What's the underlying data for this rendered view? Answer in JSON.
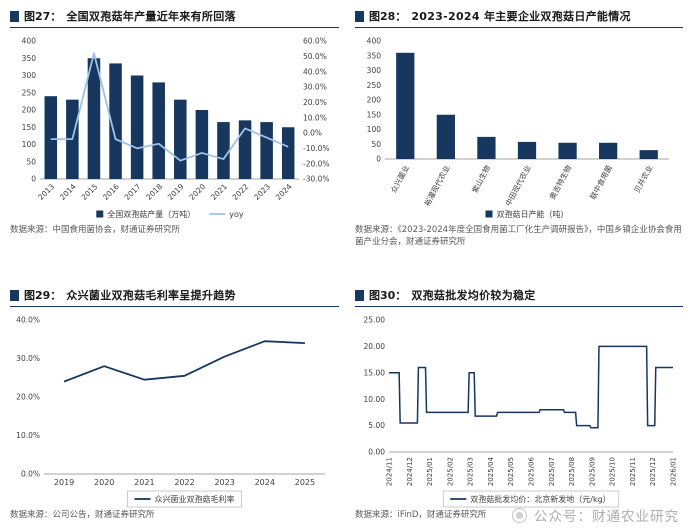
{
  "colors": {
    "navy": "#17375E",
    "light_blue": "#9DC3E6",
    "axis_text": "#404040",
    "source_text": "#595959"
  },
  "watermark": {
    "label": "公众号：财通农业研究",
    "icon": "caitong-logo"
  },
  "chart_data": [
    {
      "id": "fig27",
      "type": "combo",
      "tag": "图27：",
      "title": "全国双孢菇年产量近年来有所回落",
      "categories": [
        "2013",
        "2014",
        "2015",
        "2016",
        "2017",
        "2018",
        "2019",
        "2020",
        "2021",
        "2022",
        "2023",
        "2024"
      ],
      "series": [
        {
          "name": "全国双孢菇产量（万吨）",
          "type": "bar",
          "axis": "left",
          "color": "#17375E",
          "values": [
            240,
            230,
            350,
            335,
            300,
            280,
            230,
            200,
            165,
            170,
            165,
            150
          ]
        },
        {
          "name": "yoy",
          "type": "line",
          "axis": "right",
          "color": "#9DC3E6",
          "values": [
            -4,
            -4,
            52,
            -4,
            -10,
            -7,
            -18,
            -13,
            -17,
            3,
            -3,
            -9
          ]
        }
      ],
      "left_axis": {
        "min": 0,
        "max": 400,
        "step": 50,
        "format": "int"
      },
      "right_axis": {
        "min": -30,
        "max": 60,
        "step": 10,
        "format": "pct1"
      },
      "legend_position": "bottom",
      "grid": false,
      "source": "数据来源：中国食用菌协会，财通证券研究所"
    },
    {
      "id": "fig28",
      "type": "bar",
      "tag": "图28：",
      "title": "2023-2024 年主要企业双孢菇日产能情况",
      "categories": [
        "众兴菌业",
        "裕灌现代农业",
        "紫山生物",
        "中田现代农业",
        "奥吉特生物",
        "联中食用菌",
        "贝井农业"
      ],
      "series": [
        {
          "name": "双孢菇日产能（吨）",
          "type": "bar",
          "axis": "left",
          "color": "#17375E",
          "values": [
            360,
            150,
            75,
            58,
            55,
            55,
            30
          ]
        }
      ],
      "left_axis": {
        "min": 0,
        "max": 400,
        "step": 50,
        "format": "int"
      },
      "legend_position": "bottom",
      "grid": false,
      "source": "数据来源：《2023-2024年度全国食用菌工厂化生产调研报告》，中国乡镇企业协会食用菌产业分会，财通证券研究所"
    },
    {
      "id": "fig29",
      "type": "line",
      "tag": "图29：",
      "title": "众兴菌业双孢菇毛利率呈提升趋势",
      "categories": [
        "2019",
        "2020",
        "2021",
        "2022",
        "2023",
        "2024",
        "2025"
      ],
      "series": [
        {
          "name": "众兴菌业双孢菇毛利率",
          "type": "line",
          "axis": "left",
          "color": "#17375E",
          "values": [
            24.0,
            28.0,
            24.5,
            25.5,
            30.5,
            34.5,
            34.0
          ]
        }
      ],
      "left_axis": {
        "min": 0,
        "max": 40,
        "step": 10,
        "format": "pct1"
      },
      "legend_position": "bottom-boxed",
      "grid": false,
      "source": "数据来源：公司公告，财通证券研究所"
    },
    {
      "id": "fig30",
      "type": "step",
      "tag": "图30：",
      "title": "双孢菇批发均价较为稳定",
      "categories": [
        "2024/11",
        "2024/12",
        "2025/01",
        "2025/02",
        "2025/03",
        "2025/04",
        "2025/05",
        "2025/06",
        "2025/07",
        "2025/08",
        "2025/09",
        "2025/10",
        "2025/11",
        "2025/12",
        "2026/01"
      ],
      "series": [
        {
          "name": "双孢菇批发均价：北京新发地（元/kg）",
          "type": "step",
          "axis": "left",
          "color": "#17375E",
          "points": [
            [
              0,
              15
            ],
            [
              0.5,
              15
            ],
            [
              0.55,
              5.5
            ],
            [
              1.4,
              5.5
            ],
            [
              1.45,
              16
            ],
            [
              1.8,
              16
            ],
            [
              1.85,
              7.5
            ],
            [
              3.9,
              7.5
            ],
            [
              3.95,
              15
            ],
            [
              4.2,
              15
            ],
            [
              4.25,
              6.8
            ],
            [
              5.3,
              6.8
            ],
            [
              5.35,
              7.5
            ],
            [
              7.4,
              7.5
            ],
            [
              7.45,
              8
            ],
            [
              8.6,
              8
            ],
            [
              8.65,
              7.5
            ],
            [
              9.2,
              7.5
            ],
            [
              9.25,
              5
            ],
            [
              9.9,
              5
            ],
            [
              9.95,
              4.6
            ],
            [
              10.3,
              4.6
            ],
            [
              10.35,
              20
            ],
            [
              12.7,
              20
            ],
            [
              12.75,
              5
            ],
            [
              13.1,
              5
            ],
            [
              13.15,
              16
            ],
            [
              14,
              16
            ]
          ]
        }
      ],
      "left_axis": {
        "min": 0,
        "max": 25,
        "step": 5,
        "format": "dec2"
      },
      "legend_position": "bottom-boxed",
      "grid": false,
      "source": "数据来源：iFinD，财通证券研究所"
    }
  ]
}
